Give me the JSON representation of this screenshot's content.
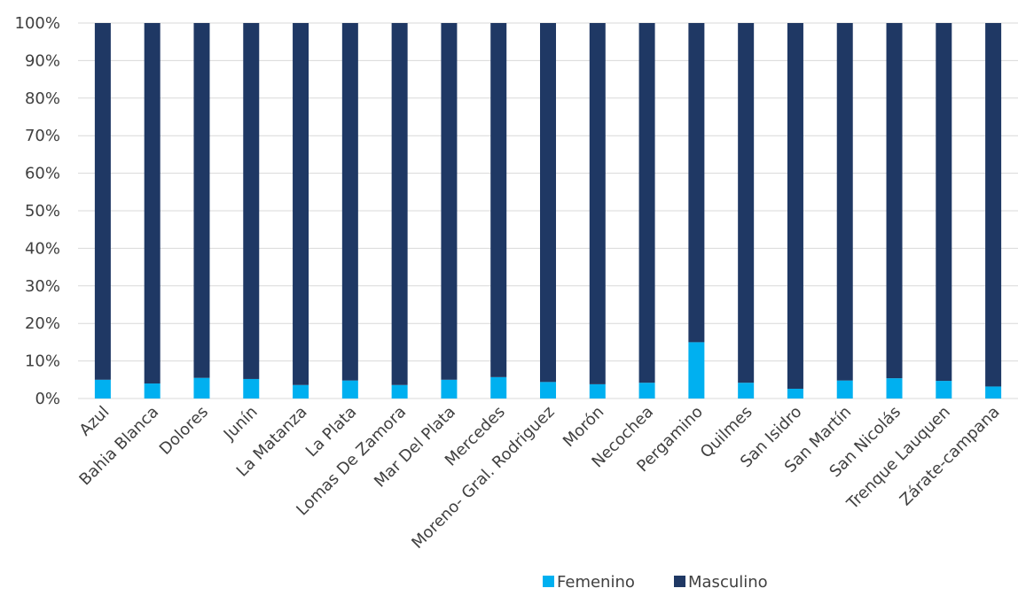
{
  "chart_data": {
    "type": "bar",
    "stacked": true,
    "percent_stacked": true,
    "title": "",
    "xlabel": "",
    "ylabel": "",
    "ylim": [
      0,
      100
    ],
    "y_ticks": [
      "0%",
      "10%",
      "20%",
      "30%",
      "40%",
      "50%",
      "60%",
      "70%",
      "80%",
      "90%",
      "100%"
    ],
    "grid": true,
    "legend_position": "bottom",
    "categories": [
      "Azul",
      "Bahia Blanca",
      "Dolores",
      "Junín",
      "La Matanza",
      "La Plata",
      "Lomas De Zamora",
      "Mar Del Plata",
      "Mercedes",
      "Moreno- Gral. Rodriguez",
      "Morón",
      "Necochea",
      "Pergamino",
      "Quilmes",
      "San Isidro",
      "San Martín",
      "San Nicolás",
      "Trenque Lauquen",
      "Zárate-campana"
    ],
    "series": [
      {
        "name": "Femenino",
        "color": "#00b0f0",
        "values": [
          5.0,
          4.0,
          5.5,
          5.2,
          3.6,
          4.8,
          3.6,
          5.0,
          5.7,
          4.4,
          3.8,
          4.2,
          15.0,
          4.2,
          2.6,
          4.8,
          5.4,
          4.7,
          3.2
        ]
      },
      {
        "name": "Masculino",
        "color": "#1f3864",
        "values": [
          95.0,
          96.0,
          94.5,
          94.8,
          96.4,
          95.2,
          96.4,
          95.0,
          94.3,
          95.6,
          96.2,
          95.8,
          85.0,
          95.8,
          97.4,
          95.2,
          94.6,
          95.3,
          96.8
        ]
      }
    ]
  }
}
